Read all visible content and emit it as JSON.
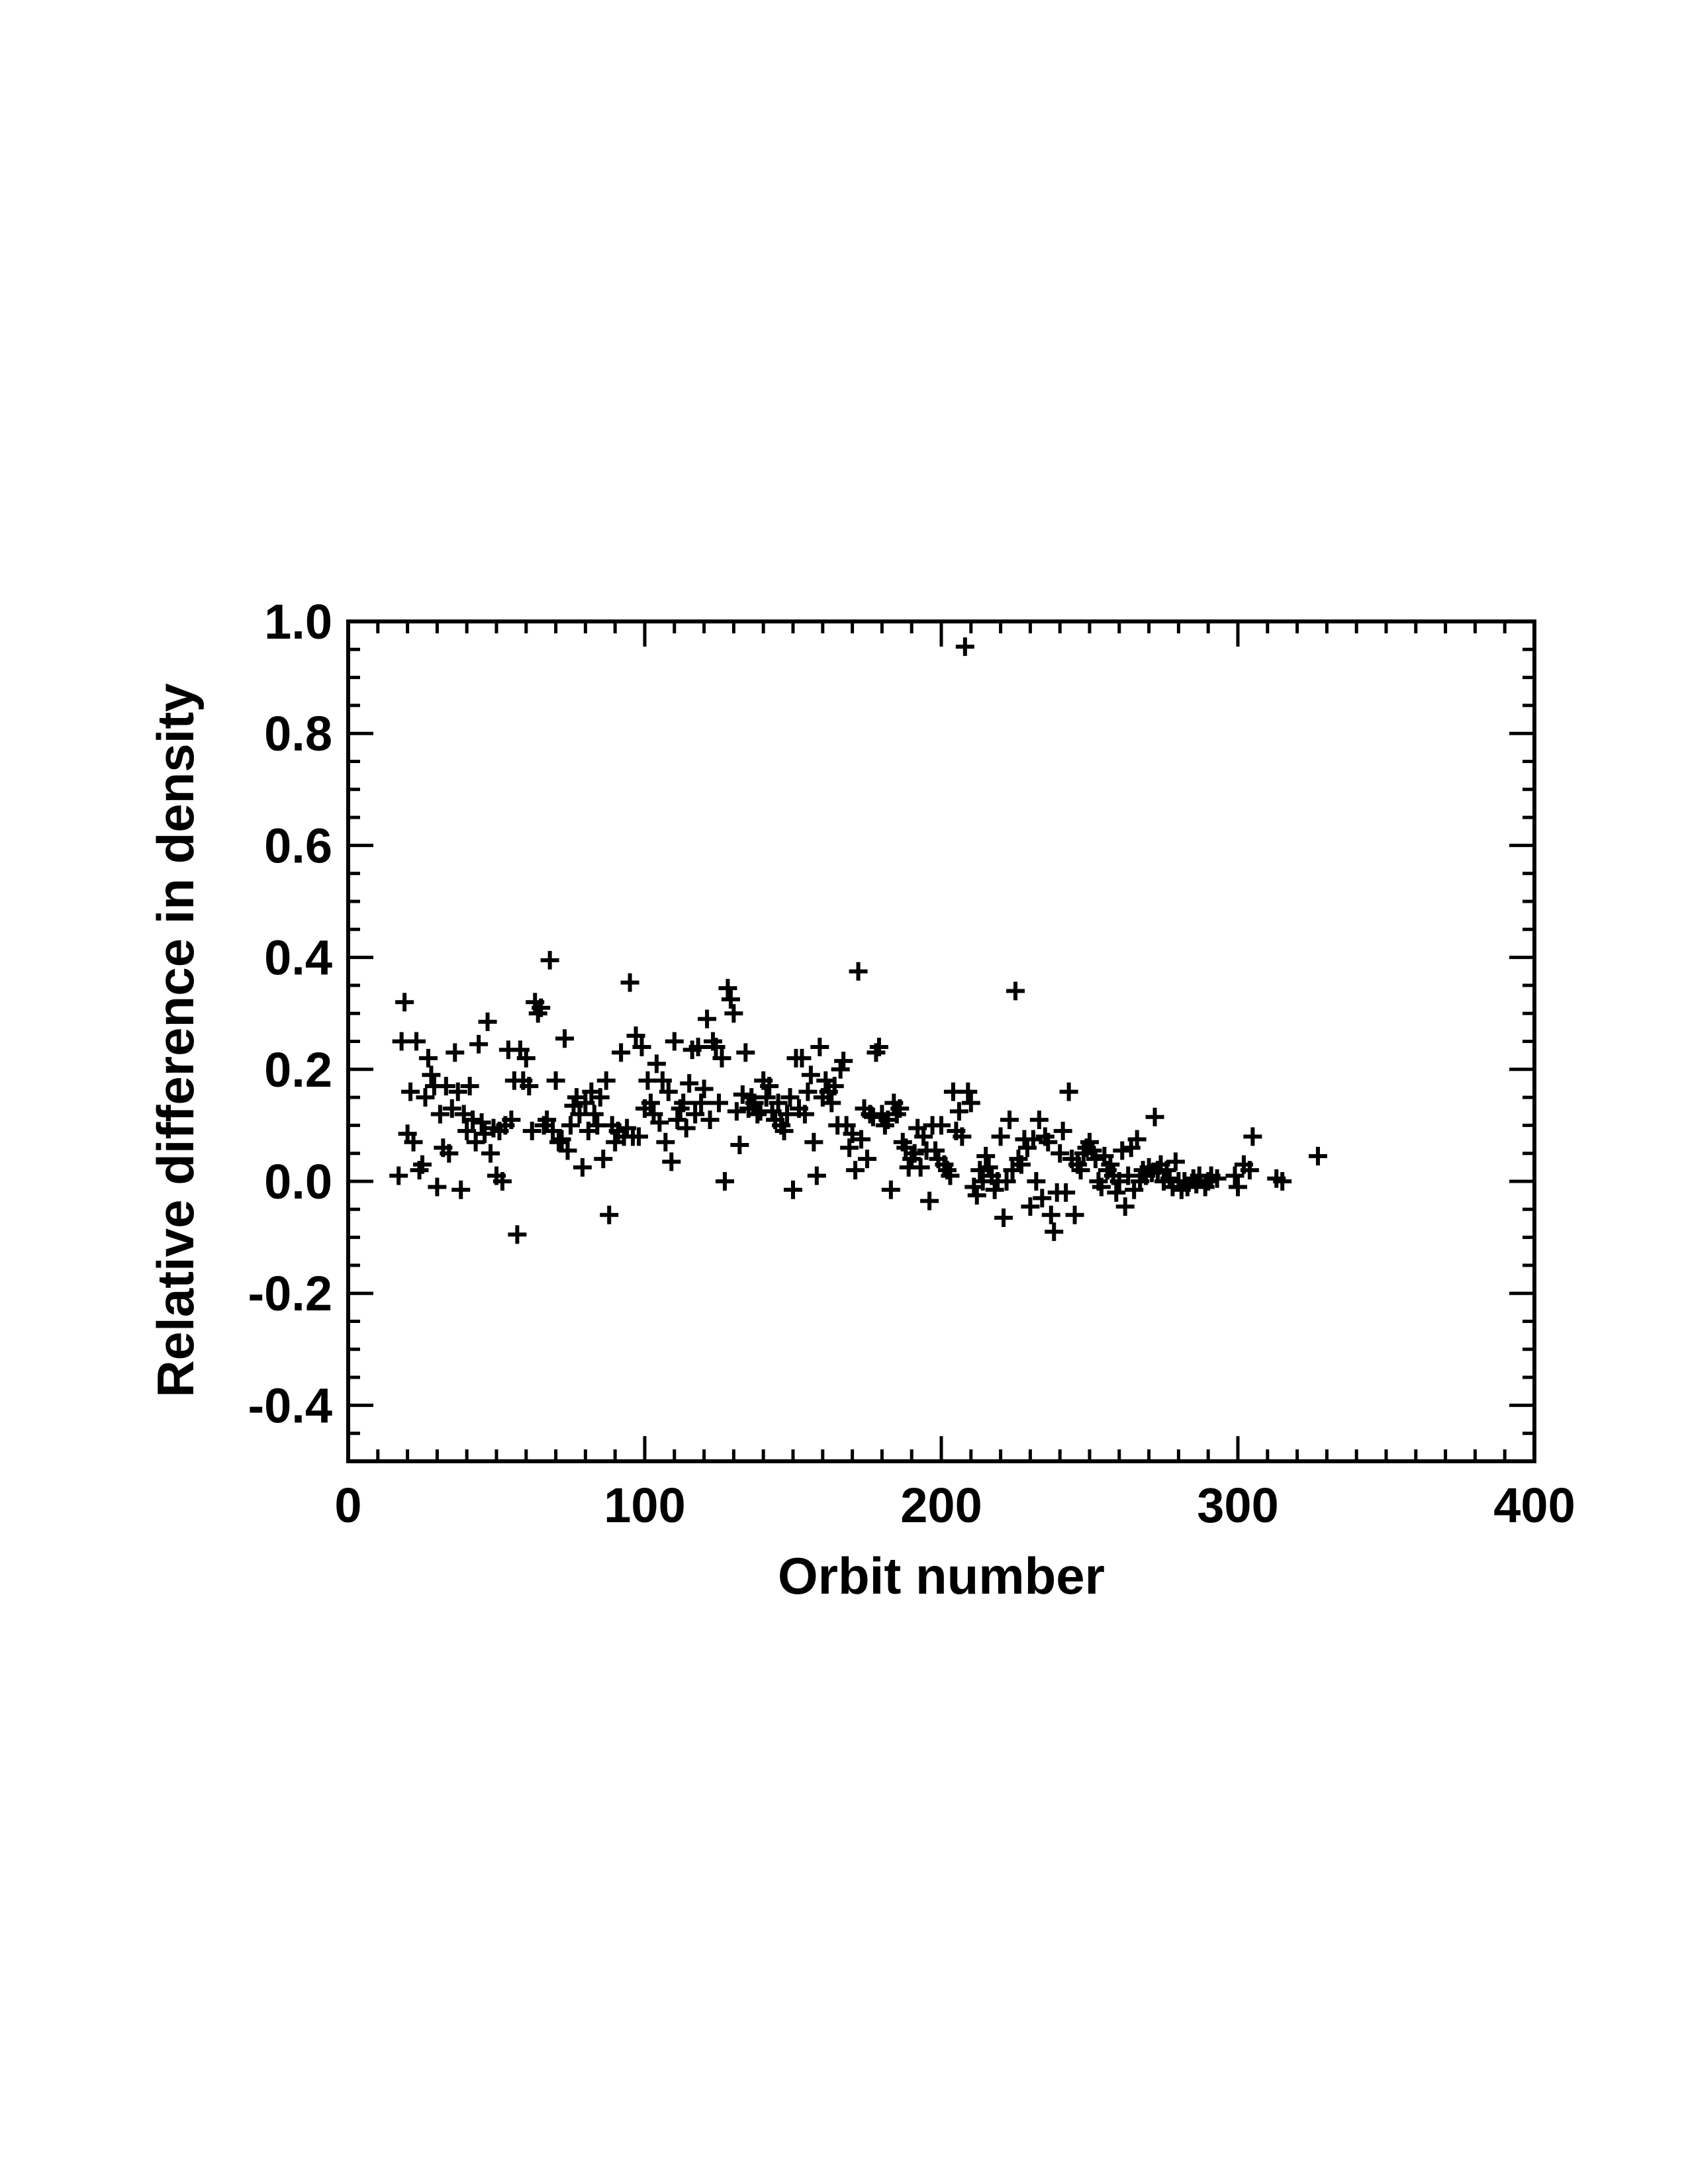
{
  "chart_data": {
    "type": "scatter",
    "xlabel": "Orbit number",
    "ylabel": "Relative difference in density",
    "xlim": [
      0,
      400
    ],
    "ylim": [
      -0.5,
      1.0
    ],
    "xticks": [
      "0",
      "100",
      "200",
      "300",
      "400"
    ],
    "yticks": [
      "-0.4",
      "-0.2",
      "0.0",
      "0.2",
      "0.4",
      "0.6",
      "0.8",
      "1.0"
    ],
    "marker": "plus",
    "marker_color": "#000000",
    "grid": false,
    "points": [
      [
        17,
        0.01
      ],
      [
        18,
        0.25
      ],
      [
        19,
        0.32
      ],
      [
        20,
        0.085
      ],
      [
        21,
        0.16
      ],
      [
        22,
        0.07
      ],
      [
        23,
        0.25
      ],
      [
        24,
        0.02
      ],
      [
        25,
        0.03
      ],
      [
        26,
        0.15
      ],
      [
        27,
        0.22
      ],
      [
        28,
        0.19
      ],
      [
        29,
        0.17
      ],
      [
        30,
        -0.01
      ],
      [
        31,
        0.12
      ],
      [
        32,
        0.06
      ],
      [
        33,
        0.17
      ],
      [
        34,
        0.05
      ],
      [
        35,
        0.13
      ],
      [
        36,
        0.23
      ],
      [
        37,
        0.16
      ],
      [
        38,
        -0.015
      ],
      [
        39,
        0.12
      ],
      [
        40,
        0.09
      ],
      [
        41,
        0.17
      ],
      [
        42,
        0.11
      ],
      [
        43,
        0.07
      ],
      [
        44,
        0.245
      ],
      [
        45,
        0.105
      ],
      [
        46,
        0.085
      ],
      [
        47,
        0.285
      ],
      [
        48,
        0.05
      ],
      [
        49,
        0.095
      ],
      [
        50,
        0.01
      ],
      [
        51,
        0.09
      ],
      [
        52,
        0.0
      ],
      [
        53,
        0.1
      ],
      [
        54,
        0.235
      ],
      [
        55,
        0.11
      ],
      [
        56,
        0.18
      ],
      [
        57,
        -0.095
      ],
      [
        58,
        0.235
      ],
      [
        59,
        0.18
      ],
      [
        60,
        0.22
      ],
      [
        61,
        0.17
      ],
      [
        62,
        0.09
      ],
      [
        63,
        0.32
      ],
      [
        64,
        0.3
      ],
      [
        65,
        0.31
      ],
      [
        66,
        0.1
      ],
      [
        67,
        0.11
      ],
      [
        68,
        0.395
      ],
      [
        69,
        0.09
      ],
      [
        70,
        0.18
      ],
      [
        71,
        0.07
      ],
      [
        72,
        0.075
      ],
      [
        73,
        0.255
      ],
      [
        74,
        0.055
      ],
      [
        75,
        0.1
      ],
      [
        76,
        0.135
      ],
      [
        77,
        0.15
      ],
      [
        78,
        0.12
      ],
      [
        79,
        0.025
      ],
      [
        80,
        0.14
      ],
      [
        81,
        0.09
      ],
      [
        82,
        0.16
      ],
      [
        83,
        0.12
      ],
      [
        84,
        0.1
      ],
      [
        85,
        0.15
      ],
      [
        86,
        0.04
      ],
      [
        87,
        0.18
      ],
      [
        88,
        -0.06
      ],
      [
        89,
        0.1
      ],
      [
        90,
        0.07
      ],
      [
        91,
        0.09
      ],
      [
        92,
        0.23
      ],
      [
        93,
        0.08
      ],
      [
        94,
        0.095
      ],
      [
        95,
        0.355
      ],
      [
        96,
        0.08
      ],
      [
        97,
        0.26
      ],
      [
        98,
        0.08
      ],
      [
        99,
        0.24
      ],
      [
        100,
        0.13
      ],
      [
        101,
        0.18
      ],
      [
        102,
        0.14
      ],
      [
        103,
        0.12
      ],
      [
        104,
        0.21
      ],
      [
        105,
        0.105
      ],
      [
        106,
        0.18
      ],
      [
        107,
        0.07
      ],
      [
        108,
        0.16
      ],
      [
        109,
        0.035
      ],
      [
        110,
        0.25
      ],
      [
        111,
        0.11
      ],
      [
        112,
        0.13
      ],
      [
        113,
        0.14
      ],
      [
        114,
        0.095
      ],
      [
        115,
        0.175
      ],
      [
        116,
        0.235
      ],
      [
        117,
        0.12
      ],
      [
        118,
        0.24
      ],
      [
        119,
        0.14
      ],
      [
        120,
        0.165
      ],
      [
        121,
        0.29
      ],
      [
        122,
        0.11
      ],
      [
        123,
        0.25
      ],
      [
        124,
        0.24
      ],
      [
        125,
        0.14
      ],
      [
        126,
        0.22
      ],
      [
        127,
        0.0
      ],
      [
        128,
        0.345
      ],
      [
        129,
        0.325
      ],
      [
        130,
        0.3
      ],
      [
        131,
        0.125
      ],
      [
        132,
        0.065
      ],
      [
        133,
        0.155
      ],
      [
        134,
        0.23
      ],
      [
        135,
        0.13
      ],
      [
        136,
        0.15
      ],
      [
        137,
        0.14
      ],
      [
        138,
        0.12
      ],
      [
        139,
        0.125
      ],
      [
        140,
        0.18
      ],
      [
        141,
        0.15
      ],
      [
        142,
        0.17
      ],
      [
        143,
        0.125
      ],
      [
        144,
        0.11
      ],
      [
        145,
        0.14
      ],
      [
        146,
        0.1
      ],
      [
        147,
        0.09
      ],
      [
        148,
        0.12
      ],
      [
        149,
        0.15
      ],
      [
        150,
        -0.015
      ],
      [
        151,
        0.22
      ],
      [
        152,
        0.13
      ],
      [
        153,
        0.22
      ],
      [
        154,
        0.12
      ],
      [
        155,
        0.16
      ],
      [
        156,
        0.19
      ],
      [
        157,
        0.07
      ],
      [
        158,
        0.01
      ],
      [
        159,
        0.24
      ],
      [
        160,
        0.15
      ],
      [
        161,
        0.18
      ],
      [
        162,
        0.16
      ],
      [
        163,
        0.14
      ],
      [
        164,
        0.17
      ],
      [
        165,
        0.1
      ],
      [
        166,
        0.2
      ],
      [
        167,
        0.215
      ],
      [
        168,
        0.1
      ],
      [
        169,
        0.06
      ],
      [
        170,
        0.085
      ],
      [
        171,
        0.02
      ],
      [
        172,
        0.375
      ],
      [
        173,
        0.075
      ],
      [
        174,
        0.13
      ],
      [
        175,
        0.04
      ],
      [
        176,
        0.12
      ],
      [
        177,
        0.115
      ],
      [
        178,
        0.23
      ],
      [
        179,
        0.24
      ],
      [
        180,
        0.12
      ],
      [
        181,
        0.1
      ],
      [
        182,
        0.11
      ],
      [
        183,
        -0.015
      ],
      [
        184,
        0.14
      ],
      [
        185,
        0.12
      ],
      [
        186,
        0.13
      ],
      [
        187,
        0.07
      ],
      [
        188,
        0.06
      ],
      [
        189,
        0.025
      ],
      [
        190,
        0.04
      ],
      [
        191,
        0.05
      ],
      [
        192,
        0.095
      ],
      [
        193,
        0.025
      ],
      [
        194,
        0.08
      ],
      [
        195,
        0.055
      ],
      [
        196,
        -0.035
      ],
      [
        197,
        0.1
      ],
      [
        198,
        0.055
      ],
      [
        199,
        0.04
      ],
      [
        200,
        0.1
      ],
      [
        201,
        0.03
      ],
      [
        202,
        0.02
      ],
      [
        203,
        0.01
      ],
      [
        204,
        0.16
      ],
      [
        205,
        0.09
      ],
      [
        206,
        0.125
      ],
      [
        207,
        0.08
      ],
      [
        208,
        0.955
      ],
      [
        209,
        0.16
      ],
      [
        210,
        0.14
      ],
      [
        211,
        -0.01
      ],
      [
        212,
        -0.025
      ],
      [
        213,
        0.02
      ],
      [
        214,
        0.0
      ],
      [
        215,
        0.045
      ],
      [
        216,
        0.025
      ],
      [
        217,
        0.01
      ],
      [
        218,
        -0.015
      ],
      [
        219,
        0.0
      ],
      [
        220,
        0.08
      ],
      [
        221,
        -0.065
      ],
      [
        222,
        0.0
      ],
      [
        223,
        0.11
      ],
      [
        224,
        0.02
      ],
      [
        225,
        0.34
      ],
      [
        226,
        0.04
      ],
      [
        227,
        0.03
      ],
      [
        228,
        0.075
      ],
      [
        229,
        0.06
      ],
      [
        230,
        -0.045
      ],
      [
        231,
        0.075
      ],
      [
        232,
        0.0
      ],
      [
        233,
        0.11
      ],
      [
        234,
        -0.03
      ],
      [
        235,
        0.08
      ],
      [
        236,
        0.07
      ],
      [
        237,
        -0.06
      ],
      [
        238,
        -0.09
      ],
      [
        239,
        -0.02
      ],
      [
        240,
        0.05
      ],
      [
        241,
        0.09
      ],
      [
        242,
        -0.02
      ],
      [
        243,
        0.16
      ],
      [
        244,
        0.04
      ],
      [
        245,
        -0.06
      ],
      [
        246,
        0.03
      ],
      [
        247,
        0.02
      ],
      [
        248,
        0.05
      ],
      [
        249,
        0.06
      ],
      [
        250,
        0.07
      ],
      [
        251,
        0.055
      ],
      [
        252,
        0.04
      ],
      [
        253,
        0.0
      ],
      [
        254,
        -0.01
      ],
      [
        255,
        0.045
      ],
      [
        256,
        0.02
      ],
      [
        257,
        0.03
      ],
      [
        258,
        0.01
      ],
      [
        259,
        -0.02
      ],
      [
        260,
        0.0
      ],
      [
        261,
        0.055
      ],
      [
        262,
        -0.045
      ],
      [
        263,
        0.01
      ],
      [
        264,
        0.06
      ],
      [
        265,
        -0.015
      ],
      [
        266,
        0.075
      ],
      [
        267,
        0.0
      ],
      [
        268,
        0.02
      ],
      [
        269,
        0.01
      ],
      [
        270,
        0.025
      ],
      [
        271,
        0.015
      ],
      [
        272,
        0.115
      ],
      [
        273,
        0.02
      ],
      [
        274,
        0.03
      ],
      [
        275,
        0.0
      ],
      [
        276,
        0.02
      ],
      [
        277,
        0.005
      ],
      [
        278,
        -0.01
      ],
      [
        279,
        0.035
      ],
      [
        280,
        0.0
      ],
      [
        281,
        -0.015
      ],
      [
        282,
        0.0
      ],
      [
        283,
        -0.01
      ],
      [
        285,
        0.005
      ],
      [
        286,
        -0.005
      ],
      [
        287,
        0.01
      ],
      [
        289,
        -0.01
      ],
      [
        290,
        0.0
      ],
      [
        291,
        0.01
      ],
      [
        293,
        0.005
      ],
      [
        299,
        0.01
      ],
      [
        300,
        -0.01
      ],
      [
        302,
        0.03
      ],
      [
        304,
        0.02
      ],
      [
        305,
        0.08
      ],
      [
        313,
        0.005
      ],
      [
        315,
        0.0
      ],
      [
        327,
        0.045
      ]
    ]
  }
}
